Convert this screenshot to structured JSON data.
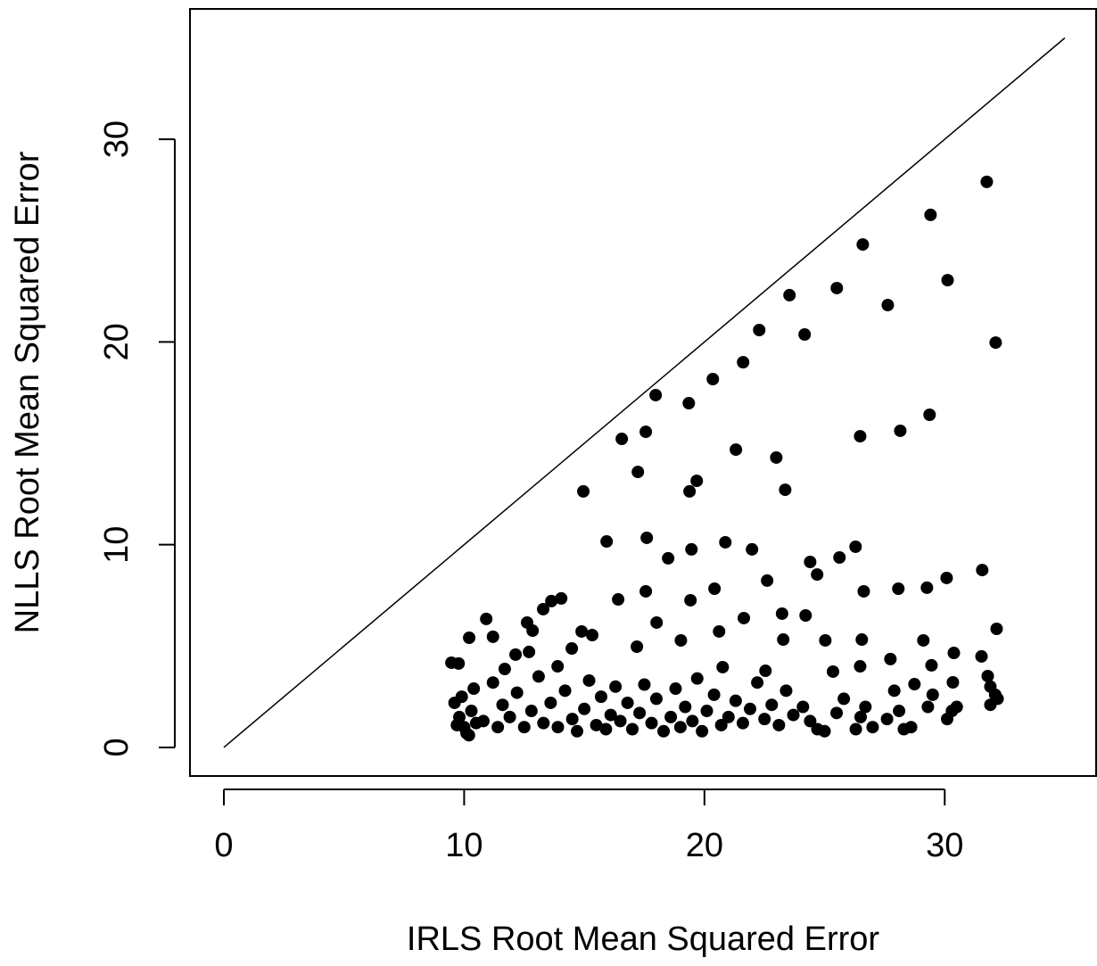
{
  "chart_data": {
    "type": "scatter",
    "x_label": "IRLS Root Mean Squared Error",
    "y_label": "NLLS Root Mean Squared Error",
    "xlim": [
      -1.41,
      36.3
    ],
    "ylim": [
      -1.41,
      36.43
    ],
    "xticks": [
      0,
      10,
      20,
      30
    ],
    "yticks": [
      0,
      10,
      20,
      30
    ],
    "color": "#000000",
    "reference_line": {
      "x": [
        0,
        35
      ],
      "y": [
        0,
        35
      ]
    },
    "x": [
      31.75,
      29.41,
      26.59,
      30.12,
      23.54,
      25.51,
      27.63,
      32.12,
      22.28,
      24.17,
      21.61,
      20.35,
      17.97,
      19.35,
      29.37,
      26.48,
      28.15,
      16.56,
      17.56,
      21.31,
      22.99,
      17.23,
      19.68,
      19.38,
      14.96,
      23.36,
      15.93,
      17.6,
      19.46,
      20.87,
      21.98,
      26.29,
      24.4,
      25.62,
      18.49,
      31.56,
      30.08,
      29.26,
      28.07,
      26.63,
      24.69,
      22.61,
      14.04,
      13.63,
      13.29,
      16.41,
      17.56,
      19.42,
      20.42,
      10.92,
      32.16,
      11.2,
      10.21,
      24.21,
      23.23,
      21.64,
      20.61,
      26.55,
      29.11,
      25.03,
      9.47,
      9.77,
      30.38,
      31.53,
      12.7,
      12.14,
      14.89,
      15.33,
      17.19,
      19.02,
      12.85,
      12.62,
      18.01,
      23.28,
      14.48,
      11.69,
      13.89,
      27.74,
      29.45,
      31.79,
      30.34,
      28.74,
      26.48,
      25.35,
      22.54,
      20.76,
      9.6,
      9.8,
      10.0,
      10.1,
      10.3,
      9.9,
      10.5,
      10.2,
      9.7,
      10.4,
      10.8,
      11.2,
      11.4,
      11.6,
      11.9,
      12.2,
      12.5,
      12.8,
      13.1,
      13.3,
      13.6,
      13.9,
      14.2,
      14.5,
      14.7,
      15.0,
      15.2,
      15.5,
      15.7,
      15.9,
      16.1,
      16.3,
      16.5,
      16.8,
      17.0,
      17.3,
      17.5,
      17.8,
      18.0,
      18.3,
      18.6,
      18.8,
      19.0,
      19.2,
      19.5,
      19.7,
      19.9,
      20.1,
      20.4,
      20.7,
      21.0,
      21.3,
      21.6,
      21.9,
      22.2,
      22.5,
      22.8,
      23.1,
      23.4,
      23.7,
      24.1,
      24.4,
      24.7,
      25.0,
      25.5,
      25.8,
      26.3,
      26.5,
      26.7,
      27.0,
      27.6,
      27.9,
      28.1,
      28.3,
      28.6,
      29.3,
      29.5,
      30.1,
      30.3,
      30.5,
      31.9,
      32.1,
      32.2,
      31.9
    ],
    "y": [
      27.9,
      26.27,
      24.81,
      23.05,
      22.31,
      22.66,
      21.82,
      19.97,
      20.59,
      20.37,
      19.0,
      18.17,
      17.38,
      16.98,
      16.41,
      15.35,
      15.62,
      15.22,
      15.57,
      14.69,
      14.3,
      13.59,
      13.15,
      12.63,
      12.63,
      12.71,
      10.16,
      10.34,
      9.77,
      10.12,
      9.77,
      9.9,
      9.15,
      9.37,
      9.33,
      8.75,
      8.36,
      7.88,
      7.83,
      7.7,
      8.53,
      8.23,
      7.35,
      7.22,
      6.82,
      7.3,
      7.7,
      7.26,
      7.83,
      6.34,
      5.85,
      5.46,
      5.41,
      6.51,
      6.6,
      6.38,
      5.72,
      5.32,
      5.28,
      5.28,
      4.18,
      4.14,
      4.66,
      4.49,
      4.71,
      4.58,
      5.72,
      5.54,
      4.97,
      5.28,
      5.76,
      6.16,
      6.16,
      5.32,
      4.88,
      3.87,
      4.0,
      4.36,
      4.05,
      3.52,
      3.21,
      3.12,
      4.0,
      3.74,
      3.78,
      3.96,
      2.2,
      1.5,
      1.0,
      0.7,
      1.8,
      2.5,
      1.2,
      0.6,
      1.1,
      2.9,
      1.3,
      3.2,
      1.0,
      2.1,
      1.5,
      2.7,
      1.0,
      1.8,
      3.5,
      1.2,
      2.2,
      1.0,
      2.8,
      1.4,
      0.8,
      1.9,
      3.3,
      1.1,
      2.5,
      0.9,
      1.6,
      3.0,
      1.3,
      2.2,
      0.9,
      1.7,
      3.1,
      1.2,
      2.4,
      0.8,
      1.5,
      2.9,
      1.0,
      2.0,
      1.3,
      3.4,
      0.8,
      1.8,
      2.6,
      1.1,
      1.5,
      2.3,
      1.2,
      1.9,
      3.2,
      1.4,
      2.1,
      1.1,
      2.8,
      1.6,
      2.0,
      1.3,
      0.9,
      0.8,
      1.7,
      2.4,
      0.9,
      1.5,
      2.0,
      1.0,
      1.4,
      2.8,
      1.8,
      0.9,
      1.0,
      2.0,
      2.6,
      1.4,
      1.8,
      2.0,
      2.1,
      2.6,
      2.4,
      3.0
    ]
  }
}
